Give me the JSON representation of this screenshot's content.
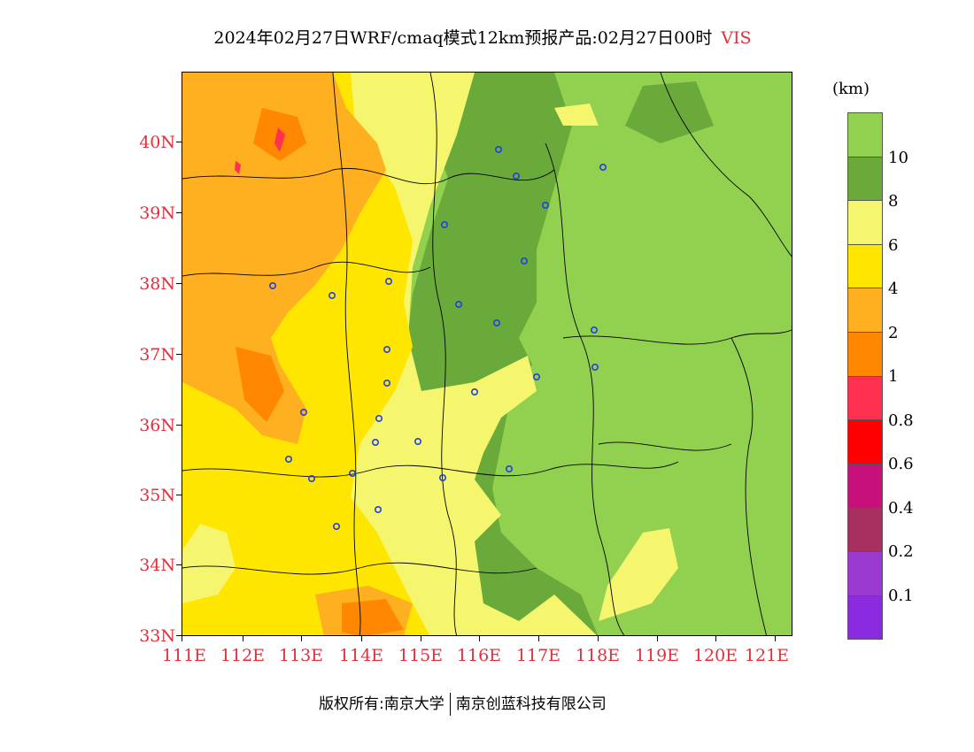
{
  "title": {
    "text": "2024年02月27日WRF/cmaq模式12km预报产品:02月27日00时",
    "variable": "VIS"
  },
  "axes": {
    "lat_labels": [
      "40N",
      "39N",
      "38N",
      "37N",
      "36N",
      "35N",
      "34N",
      "33N"
    ],
    "lon_labels": [
      "111E",
      "112E",
      "113E",
      "114E",
      "115E",
      "116E",
      "117E",
      "118E",
      "119E",
      "120E",
      "121E"
    ],
    "label_color": "#e0303c"
  },
  "legend": {
    "unit": "(km)",
    "labels": [
      "10",
      "8",
      "6",
      "4",
      "2",
      "1",
      "0.8",
      "0.6",
      "0.4",
      "0.2",
      "0.1"
    ],
    "colors": [
      "#92d050",
      "#6aaa3a",
      "#f5f56e",
      "#ffe600",
      "#ffb020",
      "#ff8800",
      "#ff3050",
      "#ff0000",
      "#c8107a",
      "#a83060",
      "#9a3ad0",
      "#8a2be2"
    ]
  },
  "footer": {
    "owner_label": "版权所有:南京大学",
    "company": "南京创蓝科技有限公司"
  }
}
